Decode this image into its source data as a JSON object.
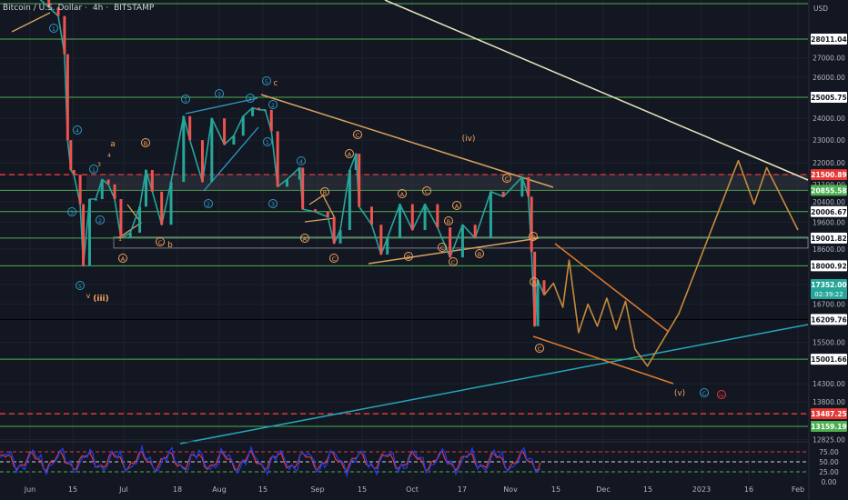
{
  "header": {
    "symbol": "Bitcoin / U.S. Dollar",
    "timeframe": "4h",
    "exchange": "BITSTAMP",
    "currency": "USD"
  },
  "colors": {
    "background": "#131722",
    "grid": "#1e222d",
    "level_line": "#4caf50",
    "candle_up": "#26a69a",
    "candle_down": "#ef5350",
    "wave_orange": "#f5a35b",
    "wave_blue": "#2e9bc4",
    "trend_white": "#e9e6bf",
    "trend_cyan": "#26a6b8",
    "projection": "#c68a3a",
    "red_dashed": "#e53935",
    "rsi_line": "#1d3ef0"
  },
  "chart_data": [
    {
      "type": "line",
      "name": "price",
      "y_scale": "log",
      "ylim": [
        12500,
        30200
      ],
      "x_ticks": [
        "Jun",
        "15",
        "Jul",
        "18",
        "Aug",
        "15",
        "Sep",
        "15",
        "Oct",
        "17",
        "Nov",
        "15",
        "Dec",
        "15",
        "2023",
        "16",
        "Feb"
      ],
      "y_ticks": [
        "28011.04",
        "27000.00",
        "26000.00",
        "25005.75",
        "24000.00",
        "23000.00",
        "22000.00",
        "21500.89",
        "21100.00",
        "20855.58",
        "20400.00",
        "20006.67",
        "19600.00",
        "19001.82",
        "18600.00",
        "18000.92",
        "17352.00",
        "02:39:22",
        "16700.00",
        "16209.76",
        "15500.00",
        "15001.66",
        "14300.00",
        "13800.00",
        "13487.25",
        "13159.19",
        "12825.00"
      ],
      "levels": [
        {
          "value": 28011.04,
          "label": "28011.04",
          "style": "solid"
        },
        {
          "value": 25005.75,
          "label": "25005.75",
          "style": "solid"
        },
        {
          "value": 21500.89,
          "label": "21500.89",
          "style": "red-dashed"
        },
        {
          "value": 20855.58,
          "label": "20855.58",
          "style": "solid"
        },
        {
          "value": 20006.67,
          "label": "20006.67",
          "style": "solid"
        },
        {
          "value": 19001.82,
          "label": "19001.82",
          "style": "solid"
        },
        {
          "value": 18000.92,
          "label": "18000.92",
          "style": "solid"
        },
        {
          "value": 16209.76,
          "label": "16209.76",
          "style": "black"
        },
        {
          "value": 15001.66,
          "label": "15001.66",
          "style": "solid"
        },
        {
          "value": 13487.25,
          "label": "13487.25",
          "style": "red-dashed"
        },
        {
          "value": 13159.19,
          "label": "13159.19",
          "style": "solid"
        }
      ],
      "current_price": {
        "label": "17352.00",
        "countdown": "02:39:22"
      },
      "price_path": [
        [
          "2022-06-01",
          31500
        ],
        [
          "2022-06-04",
          30300
        ],
        [
          "2022-06-07",
          29800
        ],
        [
          "2022-06-10",
          29300
        ],
        [
          "2022-06-12",
          27200
        ],
        [
          "2022-06-13",
          23000
        ],
        [
          "2022-06-14",
          21700
        ],
        [
          "2022-06-15",
          21500
        ],
        [
          "2022-06-17",
          20300
        ],
        [
          "2022-06-18",
          18000
        ],
        [
          "2022-06-20",
          20500
        ],
        [
          "2022-06-22",
          20500
        ],
        [
          "2022-06-24",
          21300
        ],
        [
          "2022-06-26",
          21100
        ],
        [
          "2022-06-28",
          20500
        ],
        [
          "2022-06-30",
          19000
        ],
        [
          "2022-07-03",
          19200
        ],
        [
          "2022-07-06",
          20200
        ],
        [
          "2022-07-08",
          21700
        ],
        [
          "2022-07-10",
          20800
        ],
        [
          "2022-07-13",
          19500
        ],
        [
          "2022-07-16",
          21200
        ],
        [
          "2022-07-20",
          24100
        ],
        [
          "2022-07-22",
          23000
        ],
        [
          "2022-07-26",
          21200
        ],
        [
          "2022-07-29",
          24000
        ],
        [
          "2022-08-02",
          22800
        ],
        [
          "2022-08-05",
          23200
        ],
        [
          "2022-08-08",
          24100
        ],
        [
          "2022-08-11",
          24500
        ],
        [
          "2022-08-13",
          24400
        ],
        [
          "2022-08-15",
          24400
        ],
        [
          "2022-08-17",
          23400
        ],
        [
          "2022-08-19",
          21000
        ],
        [
          "2022-08-22",
          21300
        ],
        [
          "2022-08-26",
          21800
        ],
        [
          "2022-08-27",
          20100
        ],
        [
          "2022-08-31",
          20000
        ],
        [
          "2022-09-04",
          19800
        ],
        [
          "2022-09-06",
          18800
        ],
        [
          "2022-09-08",
          19300
        ],
        [
          "2022-09-11",
          21700
        ],
        [
          "2022-09-13",
          22400
        ],
        [
          "2022-09-14",
          20200
        ],
        [
          "2022-09-18",
          19500
        ],
        [
          "2022-09-21",
          18400
        ],
        [
          "2022-09-23",
          19000
        ],
        [
          "2022-09-27",
          20300
        ],
        [
          "2022-10-01",
          19300
        ],
        [
          "2022-10-05",
          20300
        ],
        [
          "2022-10-09",
          19400
        ],
        [
          "2022-10-13",
          18300
        ],
        [
          "2022-10-17",
          19500
        ],
        [
          "2022-10-21",
          19000
        ],
        [
          "2022-10-26",
          20800
        ],
        [
          "2022-10-30",
          20600
        ],
        [
          "2022-11-05",
          21400
        ],
        [
          "2022-11-07",
          20600
        ],
        [
          "2022-11-08",
          18500
        ],
        [
          "2022-11-09",
          16000
        ],
        [
          "2022-11-10",
          17500
        ],
        [
          "2022-11-12",
          17000
        ]
      ],
      "projection_path": [
        [
          "2022-11-12",
          17000
        ],
        [
          "2022-11-15",
          17400
        ],
        [
          "2022-11-18",
          16600
        ],
        [
          "2022-11-20",
          18200
        ],
        [
          "2022-11-23",
          15800
        ],
        [
          "2022-11-26",
          16700
        ],
        [
          "2022-11-29",
          16000
        ],
        [
          "2022-12-02",
          16900
        ],
        [
          "2022-12-05",
          15900
        ],
        [
          "2022-12-08",
          16800
        ],
        [
          "2022-12-11",
          15300
        ],
        [
          "2022-12-15",
          14800
        ],
        [
          "2022-12-25",
          16400
        ],
        [
          "2023-01-05",
          19500
        ],
        [
          "2023-01-13",
          22100
        ],
        [
          "2023-01-18",
          20300
        ],
        [
          "2023-01-22",
          21800
        ],
        [
          "2023-02-01",
          19300
        ]
      ],
      "wave_labels_orange": [
        "a",
        "b",
        "c",
        "(iii)",
        "v",
        "(iv)",
        "(v)",
        "C",
        "A",
        "B",
        "1",
        "2",
        "3",
        "4",
        "5"
      ],
      "wave_labels_blue": [
        "1",
        "2",
        "3",
        "4",
        "5",
        "C"
      ],
      "wave_labels_red": [
        "iv"
      ],
      "final_labels": {
        "v_label": "(v)",
        "c_circle": "C",
        "iv_circle": "iv"
      }
    },
    {
      "type": "line",
      "name": "RSI",
      "ylim": [
        0,
        100
      ],
      "y_ticks": [
        "25.00",
        "50.00",
        "75.00",
        "0.00"
      ],
      "bands": [
        25,
        50,
        75
      ]
    }
  ]
}
